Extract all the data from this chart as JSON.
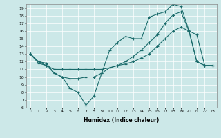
{
  "title": "",
  "xlabel": "Humidex (Indice chaleur)",
  "bg_color": "#cce8e8",
  "line_color": "#1a6b6b",
  "xlim": [
    -0.5,
    23.5
  ],
  "ylim": [
    6,
    19.5
  ],
  "xticks": [
    0,
    1,
    2,
    3,
    4,
    5,
    6,
    7,
    8,
    9,
    10,
    11,
    12,
    13,
    14,
    15,
    16,
    17,
    18,
    19,
    20,
    21,
    22,
    23
  ],
  "yticks": [
    6,
    7,
    8,
    9,
    10,
    11,
    12,
    13,
    14,
    15,
    16,
    17,
    18,
    19
  ],
  "line1_x": [
    0,
    1,
    2,
    3,
    4,
    5,
    6,
    7,
    8,
    9,
    10,
    11,
    12,
    13,
    14,
    15,
    16,
    17,
    18,
    19,
    20,
    21,
    22,
    23
  ],
  "line1_y": [
    13,
    11.8,
    11.5,
    10.5,
    10,
    8.5,
    8,
    6.3,
    7.5,
    10.5,
    13.5,
    14.5,
    15.3,
    15.0,
    15.0,
    17.8,
    18.2,
    18.5,
    19.5,
    19.2,
    16.1,
    12,
    11.5,
    11.5
  ],
  "line2_x": [
    0,
    1,
    2,
    3,
    4,
    5,
    6,
    7,
    8,
    9,
    10,
    11,
    12,
    13,
    14,
    15,
    16,
    17,
    18,
    19,
    20,
    21,
    22,
    23
  ],
  "line2_y": [
    13,
    12,
    11.8,
    10.5,
    10,
    9.8,
    9.8,
    10,
    10,
    10.5,
    11.2,
    11.5,
    12,
    12.7,
    13.5,
    14.5,
    15.5,
    17,
    18.1,
    18.5,
    16,
    12,
    11.5,
    11.5
  ],
  "line3_x": [
    0,
    1,
    2,
    3,
    4,
    5,
    6,
    7,
    8,
    9,
    10,
    11,
    12,
    13,
    14,
    15,
    16,
    17,
    18,
    19,
    20,
    21,
    22,
    23
  ],
  "line3_y": [
    13,
    12,
    11.5,
    11,
    11,
    11,
    11,
    11,
    11,
    11,
    11.2,
    11.5,
    11.7,
    12,
    12.5,
    13,
    14,
    15,
    16,
    16.5,
    16,
    15.5,
    11.5,
    11.5
  ]
}
